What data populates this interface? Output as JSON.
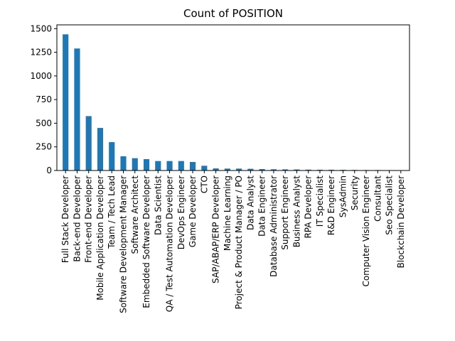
{
  "chart_data": {
    "type": "bar",
    "title": "Count of POSITION",
    "xlabel": "",
    "ylabel": "",
    "ylim": [
      0,
      1540
    ],
    "yticks": [
      0,
      250,
      500,
      750,
      1000,
      1250,
      1500
    ],
    "grid": false,
    "legend": "none",
    "bar_color": "#1f77b4",
    "categories": [
      "Full Stack Developer",
      "Back-end Developer",
      "Front-end Developer",
      "Mobile Application Developer",
      "Team / Tech Lead",
      "Software Development Manager",
      "Software Architect",
      "Embedded Software Developer",
      "Data Scientist",
      "QA / Test Automation Developer",
      "DevOps Engineer",
      "Game Developer",
      "CTO",
      "SAP/ABAP/ERP Developer",
      "Machine Learning",
      "Project & Product Manager / PO",
      "Data Analyst",
      "Data Engineer",
      "Database Administrator",
      "Support Engineer",
      "Business Analyst",
      "RPA Developer",
      "IT Specialist",
      "R&D Engineer",
      "SysAdmin",
      "Security",
      "Computer Vision Engineer",
      "Consultant",
      "Seo Specialist",
      "Blockchain Developer"
    ],
    "values": [
      1440,
      1290,
      575,
      450,
      300,
      150,
      130,
      120,
      100,
      100,
      100,
      90,
      50,
      22,
      20,
      20,
      18,
      15,
      13,
      12,
      11,
      9,
      8,
      8,
      7,
      6,
      5,
      5,
      4,
      3
    ]
  }
}
